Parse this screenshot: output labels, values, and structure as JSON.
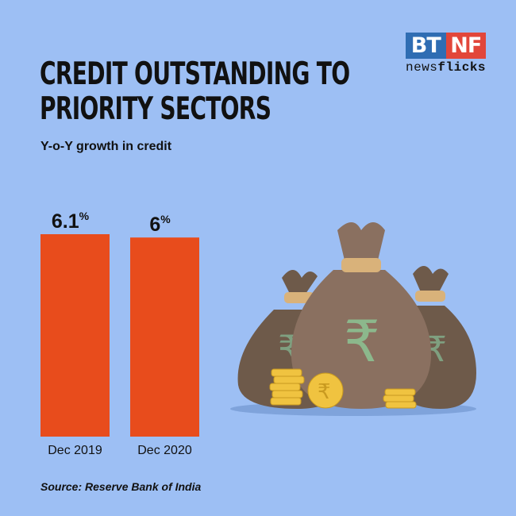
{
  "logo": {
    "left": "BT",
    "right": "NF",
    "tagline_a": "news",
    "tagline_b": "flicks",
    "colors": {
      "left": "#2f6db3",
      "right": "#e2463a"
    }
  },
  "header": {
    "title_line1": "CREDIT OUTSTANDING TO",
    "title_line2": "PRIORITY SECTORS",
    "subtitle": "Y-o-Y growth in credit"
  },
  "chart_data": {
    "type": "bar",
    "categories": [
      "Dec 2019",
      "Dec 2020"
    ],
    "values": [
      6.1,
      6
    ],
    "data_labels": [
      "6.1",
      "6"
    ],
    "unit": "%",
    "bar_color": "#e84c1c",
    "grid": false
  },
  "illustration": {
    "icon": "money-bags-rupee-icon",
    "symbol": "₹"
  },
  "footer": {
    "source": "Source: Reserve Bank of India"
  }
}
